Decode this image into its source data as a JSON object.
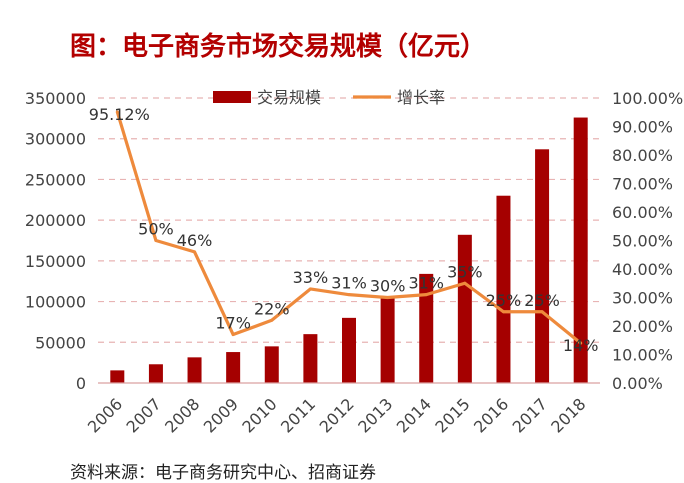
{
  "title": "图：电子商务市场交易规模（亿元）",
  "source": "资料来源：电子商务研究中心、招商证券",
  "chart_data": {
    "type": "bar",
    "categories": [
      "2006",
      "2007",
      "2008",
      "2009",
      "2010",
      "2011",
      "2012",
      "2013",
      "2014",
      "2015",
      "2016",
      "2017",
      "2018"
    ],
    "series": [
      {
        "name": "交易规模",
        "type": "bar",
        "axis": "left",
        "color": "#a50000",
        "values": [
          15500,
          23000,
          31500,
          38000,
          45000,
          60000,
          80000,
          104000,
          134000,
          182000,
          230000,
          287000,
          326000
        ]
      },
      {
        "name": "增长率",
        "type": "line",
        "axis": "right",
        "color": "#ee8a3c",
        "values": [
          95.12,
          50,
          46,
          17,
          22,
          33,
          31,
          30,
          31,
          35,
          25,
          25,
          14
        ],
        "labels": [
          "95.12%",
          "50%",
          "46%",
          "17%",
          "22%",
          "33%",
          "31%",
          "30%",
          "31%",
          "35%",
          "25%",
          "25%",
          "14%"
        ]
      }
    ],
    "y_left": {
      "min": 0,
      "max": 350000,
      "ticks": [
        "0",
        "50000",
        "100000",
        "150000",
        "200000",
        "250000",
        "300000",
        "350000"
      ]
    },
    "y_right": {
      "min": 0,
      "max": 100,
      "ticks": [
        "0.00%",
        "10.00%",
        "20.00%",
        "30.00%",
        "40.00%",
        "50.00%",
        "60.00%",
        "70.00%",
        "80.00%",
        "90.00%",
        "100.00%"
      ]
    },
    "grid": "dashed horizontal",
    "legend": "top-center"
  }
}
